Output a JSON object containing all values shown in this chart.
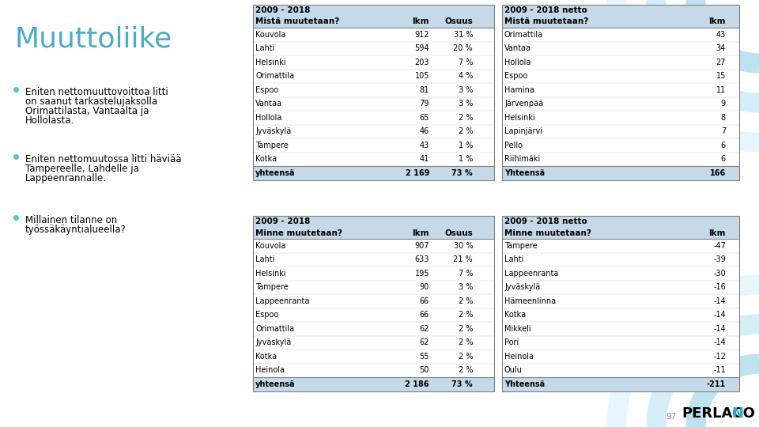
{
  "title": "Muuttoliike",
  "title_color": "#4BACC6",
  "background_color": "#FFFFFF",
  "bullet_points": [
    "Eniten nettomuuttovoittoa litti\non saanut tarkastelujaksolla\nOrimattilasta, Vantaalta ja\nHollolasta.",
    "Eniten nettomuutossa litti häviää\nTampereelle, Lahdelle ja\nLappeenrannalle.",
    "Millainen tilanne on\ntyössäkäyntialueella?"
  ],
  "table1_title": "2009 - 2018",
  "table1_subtitle": "Mistä muutetaan?",
  "table1_col2": "lkm",
  "table1_col3": "Osuus",
  "table1_data": [
    [
      "Kouvola",
      "912",
      "31 %"
    ],
    [
      "Lahti",
      "594",
      "20 %"
    ],
    [
      "Helsinki",
      "203",
      "7 %"
    ],
    [
      "Orimattila",
      "105",
      "4 %"
    ],
    [
      "Espoo",
      "81",
      "3 %"
    ],
    [
      "Vantaa",
      "79",
      "3 %"
    ],
    [
      "Hollola",
      "65",
      "2 %"
    ],
    [
      "Jyväskylä",
      "46",
      "2 %"
    ],
    [
      "Tampere",
      "43",
      "1 %"
    ],
    [
      "Kotka",
      "41",
      "1 %"
    ]
  ],
  "table1_total": [
    "yhteensä",
    "2 169",
    "73 %"
  ],
  "table2_title": "2009 - 2018 netto",
  "table2_subtitle": "Mistä muutetaan?",
  "table2_col2": "lkm",
  "table2_data": [
    [
      "Orimattila",
      "43"
    ],
    [
      "Vantaa",
      "34"
    ],
    [
      "Hollola",
      "27"
    ],
    [
      "Espoo",
      "15"
    ],
    [
      "Hamina",
      "11"
    ],
    [
      "Järvenpää",
      "9"
    ],
    [
      "Helsinki",
      "8"
    ],
    [
      "Lapinjärvi",
      "7"
    ],
    [
      "Pello",
      "6"
    ],
    [
      "Riihimäki",
      "6"
    ]
  ],
  "table2_total": [
    "Yhteensä",
    "166"
  ],
  "table3_title": "2009 - 2018",
  "table3_subtitle": "Minne muutetaan?",
  "table3_col2": "lkm",
  "table3_col3": "Osuus",
  "table3_data": [
    [
      "Kouvola",
      "907",
      "30 %"
    ],
    [
      "Lahti",
      "633",
      "21 %"
    ],
    [
      "Helsinki",
      "195",
      "7 %"
    ],
    [
      "Tampere",
      "90",
      "3 %"
    ],
    [
      "Lappeenranta",
      "66",
      "2 %"
    ],
    [
      "Espoo",
      "66",
      "2 %"
    ],
    [
      "Orimattila",
      "62",
      "2 %"
    ],
    [
      "Jyväskylä",
      "62",
      "2 %"
    ],
    [
      "Kotka",
      "55",
      "2 %"
    ],
    [
      "Heinola",
      "50",
      "2 %"
    ]
  ],
  "table3_total": [
    "yhteensä",
    "2 186",
    "73 %"
  ],
  "table4_title": "2009 - 2018 netto",
  "table4_subtitle": "Minne muutetaan?",
  "table4_col2": "lkm",
  "table4_data": [
    [
      "Tampere",
      "-47"
    ],
    [
      "Lahti",
      "-39"
    ],
    [
      "Lappeenranta",
      "-30"
    ],
    [
      "Jyväskylä",
      "-16"
    ],
    [
      "Hämeenlinna",
      "-14"
    ],
    [
      "Kotka",
      "-14"
    ],
    [
      "Mikkeli",
      "-14"
    ],
    [
      "Pori",
      "-14"
    ],
    [
      "Heinola",
      "-12"
    ],
    [
      "Oulu",
      "-11"
    ]
  ],
  "table4_total": [
    "Yhteensä",
    "-211"
  ],
  "page_number": "97",
  "header_bg": "#C5D9E8",
  "table_border": "#808080",
  "total_bg": "#C5D9E8",
  "text_color": "#000000",
  "font_size": 7.0,
  "header_font_size": 7.5,
  "arc_color": "#7EC8E3",
  "arc_color2": "#A8D8EA",
  "arc_color3": "#C5E8F5"
}
